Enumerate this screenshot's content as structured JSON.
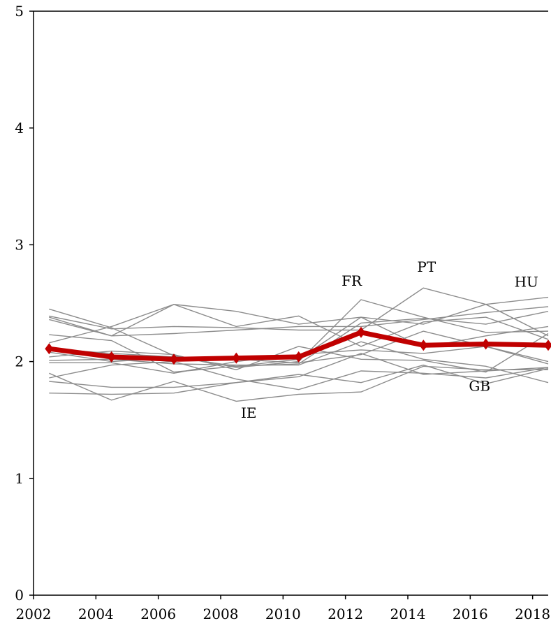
{
  "chart_data": {
    "type": "line",
    "title": "",
    "xlabel": "",
    "ylabel": "",
    "xlim": [
      2002,
      2018.5
    ],
    "ylim": [
      0,
      5
    ],
    "x_ticks": [
      "2002",
      "2004",
      "2006",
      "2008",
      "2010",
      "2012",
      "2014",
      "2016",
      "2018"
    ],
    "y_ticks": [
      "0",
      "1",
      "2",
      "3",
      "4",
      "5"
    ],
    "grid": false,
    "legend": "none",
    "x": [
      2002.5,
      2004.5,
      2006.5,
      2008.5,
      2010.5,
      2012.5,
      2014.5,
      2016.5,
      2018.5
    ],
    "highlight_series": {
      "color": "#c00000",
      "values": [
        2.11,
        2.04,
        2.02,
        2.03,
        2.04,
        2.25,
        2.14,
        2.15,
        2.14
      ]
    },
    "background_series_color": "#8c8c8c",
    "background_series": [
      {
        "values": [
          2.45,
          2.29,
          2.05,
          1.95,
          2.0,
          2.53,
          2.38,
          2.25,
          2.26
        ]
      },
      {
        "values": [
          2.39,
          2.28,
          2.3,
          2.29,
          2.27,
          2.27,
          2.63,
          2.49,
          2.22
        ]
      },
      {
        "values": [
          2.38,
          2.22,
          2.49,
          2.43,
          2.32,
          2.38,
          2.32,
          2.49,
          2.55
        ]
      },
      {
        "values": [
          2.36,
          2.22,
          2.24,
          2.27,
          2.3,
          2.3,
          2.36,
          2.42,
          2.47
        ]
      },
      {
        "values": [
          2.23,
          2.18,
          1.91,
          1.96,
          1.98,
          2.33,
          2.37,
          2.32,
          2.43
        ]
      },
      {
        "values": [
          2.16,
          2.3,
          2.49,
          2.3,
          2.39,
          2.13,
          2.34,
          2.38,
          2.19
        ]
      },
      {
        "values": [
          2.11,
          2.07,
          2.04,
          1.96,
          2.02,
          2.38,
          2.12,
          2.22,
          2.3
        ]
      },
      {
        "values": [
          2.08,
          2.0,
          2.03,
          2.02,
          1.99,
          2.06,
          2.26,
          2.13,
          2.0
        ]
      },
      {
        "values": [
          2.04,
          2.09,
          2.06,
          1.93,
          2.13,
          2.02,
          2.01,
          1.91,
          2.24
        ]
      },
      {
        "values": [
          2.01,
          2.02,
          1.98,
          1.97,
          1.97,
          2.17,
          2.02,
          1.96,
          1.82
        ]
      },
      {
        "values": [
          1.99,
          1.99,
          1.9,
          2.0,
          2.06,
          2.1,
          2.07,
          2.13,
          1.98
        ]
      },
      {
        "values": [
          1.9,
          1.67,
          1.83,
          1.66,
          1.72,
          1.74,
          1.96,
          1.93,
          1.93
        ]
      },
      {
        "values": [
          1.86,
          1.97,
          2.0,
          1.85,
          1.76,
          1.92,
          1.9,
          1.86,
          1.95
        ]
      },
      {
        "values": [
          1.83,
          1.78,
          1.78,
          1.82,
          1.89,
          1.82,
          1.97,
          1.81,
          1.94
        ]
      },
      {
        "values": [
          1.73,
          1.72,
          1.73,
          1.82,
          1.87,
          2.07,
          1.89,
          1.92,
          1.95
        ]
      }
    ],
    "annotations": [
      {
        "text": "FR",
        "x": 2012.2,
        "y": 2.65
      },
      {
        "text": "PT",
        "x": 2014.6,
        "y": 2.77
      },
      {
        "text": "HU",
        "x": 2017.8,
        "y": 2.64
      },
      {
        "text": "GB",
        "x": 2016.3,
        "y": 1.75
      },
      {
        "text": "IE",
        "x": 2008.9,
        "y": 1.52
      }
    ]
  }
}
